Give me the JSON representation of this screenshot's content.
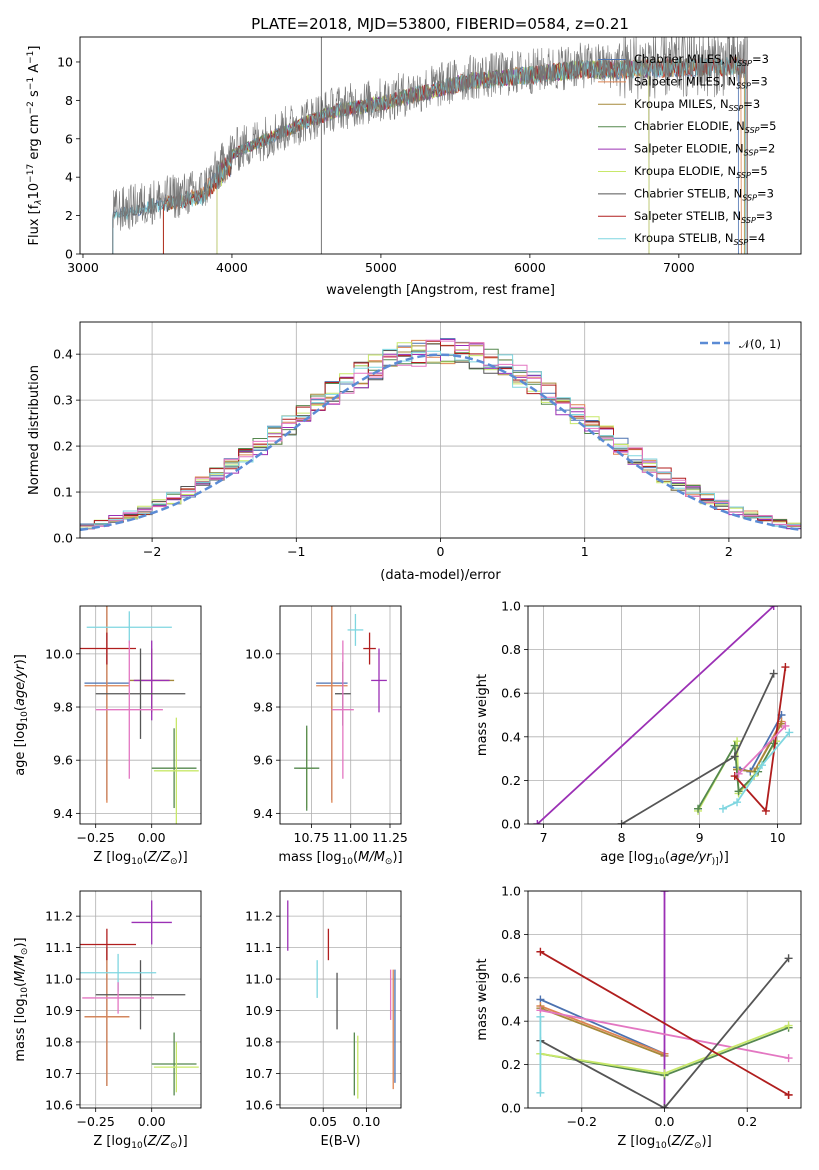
{
  "title": "PLATE=2018, MJD=53800, FIBERID=0584, z=0.21",
  "models": [
    {
      "name": "Chabrier MILES",
      "nssp": "3",
      "color": "#4c72b0"
    },
    {
      "name": "Salpeter MILES",
      "nssp": "3",
      "color": "#dd8452"
    },
    {
      "name": "Kroupa MILES",
      "nssp": "3",
      "color": "#a5893a"
    },
    {
      "name": "Chabrier ELODIE",
      "nssp": "5",
      "color": "#55884f"
    },
    {
      "name": "Salpeter ELODIE",
      "nssp": "2",
      "color": "#9b30b5"
    },
    {
      "name": "Kroupa ELODIE",
      "nssp": "5",
      "color": "#c8e86a"
    },
    {
      "name": "Chabrier STELIB",
      "nssp": "3",
      "color": "#555555"
    },
    {
      "name": "Salpeter STELIB",
      "nssp": "3",
      "color": "#b01e1e"
    },
    {
      "name": "Kroupa STELIB",
      "nssp": "4",
      "color": "#7fd6e0"
    }
  ],
  "chart_data": [
    {
      "id": "spectrum",
      "type": "line",
      "xlabel": "wavelength [Angstrom, rest frame]",
      "ylabel_parts": {
        "a": "Flux [f",
        "b": "λ",
        "c": "10",
        "d": "−17",
        "e": " erg cm",
        "f": "−2",
        "g": " s",
        "h": "−1",
        "i": " A",
        "j": "−1",
        "k": "]"
      },
      "xlim": [
        2980,
        7820
      ],
      "ylim": [
        0,
        11.3
      ],
      "xticks": [
        "3000",
        "4000",
        "5000",
        "6000",
        "7000"
      ],
      "xtick_values": [
        3000,
        4000,
        5000,
        6000,
        7000
      ],
      "yticks": [
        "0",
        "2",
        "4",
        "6",
        "8",
        "10"
      ],
      "ytick_values": [
        0,
        2,
        4,
        6,
        8,
        10
      ],
      "observed_range": [
        3200,
        7460
      ],
      "model_ranges": [
        [
          3200,
          7400
        ],
        [
          3540,
          7420
        ],
        [
          3540,
          7440
        ],
        [
          3900,
          6800
        ],
        [
          3900,
          6800
        ],
        [
          3900,
          6800
        ],
        [
          3200,
          7450
        ],
        [
          3540,
          7460
        ],
        [
          3200,
          7450
        ]
      ],
      "marker_line_x": 4600,
      "continuum": [
        [
          3200,
          2.2
        ],
        [
          3500,
          2.8
        ],
        [
          3800,
          3.3
        ],
        [
          4000,
          5.3
        ],
        [
          4200,
          6.0
        ],
        [
          4500,
          7.0
        ],
        [
          4700,
          7.6
        ],
        [
          5000,
          8.0
        ],
        [
          5300,
          8.6
        ],
        [
          5600,
          9.2
        ],
        [
          6000,
          9.5
        ],
        [
          6300,
          9.8
        ],
        [
          6600,
          9.8
        ],
        [
          7000,
          9.9
        ],
        [
          7400,
          10.0
        ]
      ]
    },
    {
      "id": "residual-histogram",
      "type": "line",
      "xlabel": "(data-model)/error",
      "ylabel": "Normed distribution",
      "xlim": [
        -2.5,
        2.5
      ],
      "ylim": [
        0,
        0.47
      ],
      "xticks": [
        "−2",
        "−1",
        "0",
        "1",
        "2"
      ],
      "xtick_values": [
        -2,
        -1,
        0,
        1,
        2
      ],
      "yticks": [
        "0.0",
        "0.1",
        "0.2",
        "0.3",
        "0.4"
      ],
      "ytick_values": [
        0,
        0.1,
        0.2,
        0.3,
        0.4
      ],
      "bin_width": 0.1,
      "reference_curve": {
        "label": "𝒩(0, 1)",
        "mean": 0,
        "sigma": 1,
        "color": "#5b8bd5"
      }
    },
    {
      "id": "age-vs-Z",
      "type": "scatter",
      "xlabel_parts": {
        "a": "Z [log",
        "b": "10",
        "c": "(",
        "d": "Z/Z",
        "e": "⊙",
        "f": ")]"
      },
      "ylabel_parts": {
        "a": "age  [log",
        "b": "10",
        "c": "(",
        "d": "age/yr",
        "e": ")]"
      },
      "xlim": [
        -0.32,
        0.22
      ],
      "ylim": [
        9.36,
        10.18
      ],
      "xticks": [
        "−0.25",
        "0.00"
      ],
      "xtick_values": [
        -0.25,
        0.0
      ],
      "yticks": [
        "9.4",
        "9.6",
        "9.8",
        "10.0"
      ],
      "ytick_values": [
        9.4,
        9.6,
        9.8,
        10.0
      ],
      "points": [
        {
          "x": -0.2,
          "y": 9.89,
          "xerr": 0.1,
          "yerr": 0.44,
          "c": 0
        },
        {
          "x": -0.2,
          "y": 9.88,
          "xerr": 0.1,
          "yerr": 0.44,
          "c": 1
        },
        {
          "x": 0.0,
          "y": 9.9,
          "xerr": 0.1,
          "yerr": 0.12,
          "c": 2
        },
        {
          "x": 0.1,
          "y": 9.57,
          "xerr": 0.1,
          "yerr": 0.15,
          "c": 3
        },
        {
          "x": 0.0,
          "y": 9.9,
          "xerr": 0.08,
          "yerr": 0.15,
          "c": 4
        },
        {
          "x": 0.11,
          "y": 9.56,
          "xerr": 0.1,
          "yerr": 0.2,
          "c": 5
        },
        {
          "x": -0.05,
          "y": 9.85,
          "xerr": 0.2,
          "yerr": 0.17,
          "c": 6
        },
        {
          "x": -0.2,
          "y": 10.02,
          "xerr": 0.13,
          "yerr": 0.06,
          "c": 7
        },
        {
          "x": -0.1,
          "y": 10.1,
          "xerr": 0.19,
          "yerr": 0.06,
          "c": 8
        },
        {
          "x": -0.1,
          "y": 9.79,
          "xerr": 0.15,
          "yerr": 0.26,
          "c": 9
        }
      ]
    },
    {
      "id": "age-vs-mass",
      "type": "scatter",
      "xlabel_parts": {
        "a": "mass [log",
        "b": "10",
        "c": "(",
        "d": "M/M",
        "e": "⊙",
        "f": ")]"
      },
      "xlim": [
        10.55,
        11.32
      ],
      "ylim": [
        9.36,
        10.18
      ],
      "xticks": [
        "10.75",
        "11.00",
        "11.25"
      ],
      "xtick_values": [
        10.75,
        11.0,
        11.25
      ],
      "yticks": [
        "9.4",
        "9.6",
        "9.8",
        "10.0"
      ],
      "ytick_values": [
        9.4,
        9.6,
        9.8,
        10.0
      ],
      "points": [
        {
          "x": 10.88,
          "y": 9.89,
          "xerr": 0.1,
          "yerr": 0.44,
          "c": 0
        },
        {
          "x": 10.88,
          "y": 9.88,
          "xerr": 0.1,
          "yerr": 0.44,
          "c": 1
        },
        {
          "x": 10.72,
          "y": 9.57,
          "xerr": 0.05,
          "yerr": 0.15,
          "c": 5
        },
        {
          "x": 10.72,
          "y": 9.57,
          "xerr": 0.08,
          "yerr": 0.16,
          "c": 3
        },
        {
          "x": 11.18,
          "y": 9.9,
          "xerr": 0.05,
          "yerr": 0.12,
          "c": 4
        },
        {
          "x": 10.95,
          "y": 9.85,
          "xerr": 0.05,
          "yerr": 0.12,
          "c": 6
        },
        {
          "x": 11.12,
          "y": 10.02,
          "xerr": 0.04,
          "yerr": 0.06,
          "c": 7
        },
        {
          "x": 11.03,
          "y": 10.09,
          "xerr": 0.05,
          "yerr": 0.06,
          "c": 8
        },
        {
          "x": 10.95,
          "y": 9.79,
          "xerr": 0.07,
          "yerr": 0.26,
          "c": 9
        }
      ]
    },
    {
      "id": "massweight-vs-age",
      "type": "line",
      "xlabel_parts": {
        "a": "age  [log",
        "b": "10",
        "c": "(",
        "d": "age/yr",
        "e": ")]"
      },
      "ylabel": "mass weight",
      "xlim": [
        6.8,
        10.3
      ],
      "ylim": [
        0,
        1
      ],
      "xticks": [
        "7",
        "8",
        "9",
        "10"
      ],
      "xtick_values": [
        7,
        8,
        9,
        10
      ],
      "yticks": [
        "0.0",
        "0.2",
        "0.4",
        "0.6",
        "0.8",
        "1.0"
      ],
      "ytick_values": [
        0,
        0.2,
        0.4,
        0.6,
        0.8,
        1.0
      ],
      "series": [
        {
          "c": 0,
          "x": [
            9.48,
            9.65,
            10.05
          ],
          "y": [
            0.26,
            0.24,
            0.5
          ]
        },
        {
          "c": 1,
          "x": [
            9.48,
            9.7,
            10.05
          ],
          "y": [
            0.25,
            0.24,
            0.47
          ]
        },
        {
          "c": 2,
          "x": [
            9.48,
            9.7,
            10.05
          ],
          "y": [
            0.25,
            0.24,
            0.46
          ]
        },
        {
          "c": 4,
          "x": [
            6.92,
            9.95
          ],
          "y": [
            0.0,
            1.0
          ]
        },
        {
          "c": 5,
          "x": [
            8.98,
            9.48,
            9.5,
            9.7,
            9.98
          ],
          "y": [
            0.06,
            0.38,
            0.14,
            0.22,
            0.38
          ]
        },
        {
          "c": 3,
          "x": [
            8.98,
            9.45,
            9.5,
            9.75,
            9.95
          ],
          "y": [
            0.07,
            0.36,
            0.15,
            0.24,
            0.37
          ]
        },
        {
          "c": 6,
          "x": [
            8.0,
            9.45,
            9.95
          ],
          "y": [
            0.0,
            0.31,
            0.69
          ]
        },
        {
          "c": 7,
          "x": [
            9.45,
            9.85,
            10.1
          ],
          "y": [
            0.22,
            0.06,
            0.72
          ]
        },
        {
          "c": 8,
          "x": [
            9.3,
            9.48,
            9.8,
            10.15
          ],
          "y": [
            0.07,
            0.1,
            0.27,
            0.42
          ]
        },
        {
          "c": 9,
          "x": [
            9.5,
            10.1
          ],
          "y": [
            0.23,
            0.45
          ]
        }
      ]
    },
    {
      "id": "mass-vs-Z",
      "type": "scatter",
      "xlabel_parts": {
        "a": "Z [log",
        "b": "10",
        "c": "(",
        "d": "Z/Z",
        "e": "⊙",
        "f": ")]"
      },
      "ylabel_parts": {
        "a": "mass [log",
        "b": "10",
        "c": "(",
        "d": "M/M",
        "e": "⊙",
        "f": ")]"
      },
      "xlim": [
        -0.32,
        0.22
      ],
      "ylim": [
        10.59,
        11.28
      ],
      "xticks": [
        "−0.25",
        "0.00"
      ],
      "xtick_values": [
        -0.25,
        0.0
      ],
      "yticks": [
        "10.6",
        "10.7",
        "10.8",
        "10.9",
        "11.0",
        "11.1",
        "11.2"
      ],
      "ytick_values": [
        10.6,
        10.7,
        10.8,
        10.9,
        11.0,
        11.1,
        11.2
      ],
      "points": [
        {
          "x": -0.2,
          "y": 10.88,
          "xerr": 0.1,
          "yerr": 0.22,
          "c": 0
        },
        {
          "x": -0.2,
          "y": 10.88,
          "xerr": 0.1,
          "yerr": 0.22,
          "c": 1
        },
        {
          "x": 0.1,
          "y": 10.73,
          "xerr": 0.1,
          "yerr": 0.1,
          "c": 3
        },
        {
          "x": 0.0,
          "y": 11.18,
          "xerr": 0.09,
          "yerr": 0.07,
          "c": 4
        },
        {
          "x": 0.11,
          "y": 10.72,
          "xerr": 0.1,
          "yerr": 0.08,
          "c": 5
        },
        {
          "x": -0.05,
          "y": 10.95,
          "xerr": 0.2,
          "yerr": 0.11,
          "c": 6
        },
        {
          "x": -0.2,
          "y": 11.11,
          "xerr": 0.13,
          "yerr": 0.05,
          "c": 7
        },
        {
          "x": -0.15,
          "y": 11.02,
          "xerr": 0.17,
          "yerr": 0.06,
          "c": 8
        },
        {
          "x": -0.15,
          "y": 10.94,
          "xerr": 0.16,
          "yerr": 0.05,
          "c": 9
        }
      ]
    },
    {
      "id": "mass-vs-ebv",
      "type": "scatter",
      "xlabel": "E(B-V)",
      "xlim": [
        0.0,
        0.14
      ],
      "ylim": [
        10.59,
        11.28
      ],
      "xticks": [
        "0.05",
        "0.10"
      ],
      "xtick_values": [
        0.05,
        0.1
      ],
      "yticks": [
        "10.6",
        "10.7",
        "10.8",
        "10.9",
        "11.0",
        "11.1",
        "11.2"
      ],
      "ytick_values": [
        10.6,
        10.7,
        10.8,
        10.9,
        11.0,
        11.1,
        11.2
      ],
      "points": [
        {
          "x": 0.133,
          "y": 10.85,
          "yerr": 0.18,
          "c": 0
        },
        {
          "x": 0.131,
          "y": 10.84,
          "yerr": 0.19,
          "c": 1
        },
        {
          "x": 0.086,
          "y": 10.73,
          "yerr": 0.1,
          "c": 3
        },
        {
          "x": 0.009,
          "y": 11.17,
          "yerr": 0.08,
          "c": 4
        },
        {
          "x": 0.09,
          "y": 10.72,
          "yerr": 0.1,
          "c": 5
        },
        {
          "x": 0.066,
          "y": 10.93,
          "yerr": 0.09,
          "c": 6
        },
        {
          "x": 0.056,
          "y": 11.11,
          "yerr": 0.05,
          "c": 7
        },
        {
          "x": 0.043,
          "y": 11.0,
          "yerr": 0.06,
          "c": 8
        },
        {
          "x": 0.128,
          "y": 10.95,
          "yerr": 0.08,
          "c": 9
        }
      ]
    },
    {
      "id": "massweight-vs-Z",
      "type": "line",
      "xlabel_parts": {
        "a": "Z [log",
        "b": "10",
        "c": "(",
        "d": "Z/Z",
        "e": "⊙",
        "f": ")]"
      },
      "ylabel": "mass weight",
      "xlim": [
        -0.33,
        0.33
      ],
      "ylim": [
        0,
        1
      ],
      "xticks": [
        "−0.2",
        "0.0",
        "0.2"
      ],
      "xtick_values": [
        -0.2,
        0.0,
        0.2
      ],
      "yticks": [
        "0.0",
        "0.2",
        "0.4",
        "0.6",
        "0.8",
        "1.0"
      ],
      "ytick_values": [
        0,
        0.2,
        0.4,
        0.6,
        0.8,
        1.0
      ],
      "series": [
        {
          "c": 0,
          "x": [
            -0.3,
            0.0
          ],
          "y": [
            0.5,
            0.25
          ]
        },
        {
          "c": 1,
          "x": [
            -0.3,
            0.0
          ],
          "y": [
            0.47,
            0.25
          ]
        },
        {
          "c": 2,
          "x": [
            -0.3,
            0.0
          ],
          "y": [
            0.46,
            0.24
          ]
        },
        {
          "c": 4,
          "x": [
            0.0,
            0.0
          ],
          "y": [
            0.0,
            1.0
          ]
        },
        {
          "c": 9,
          "x": [
            -0.3,
            0.3
          ],
          "y": [
            0.45,
            0.23
          ]
        },
        {
          "c": 3,
          "x": [
            -0.3,
            0.0,
            0.3
          ],
          "y": [
            0.25,
            0.15,
            0.37
          ]
        },
        {
          "c": 5,
          "x": [
            -0.3,
            0.0,
            0.3
          ],
          "y": [
            0.25,
            0.16,
            0.38
          ]
        },
        {
          "c": 6,
          "x": [
            -0.3,
            0.0,
            0.3
          ],
          "y": [
            0.31,
            0.0,
            0.69
          ]
        },
        {
          "c": 7,
          "x": [
            -0.3,
            0.3,
            0.3
          ],
          "y": [
            0.72,
            0.06,
            0.06
          ]
        },
        {
          "c": 8,
          "x": [
            -0.3,
            -0.3
          ],
          "y": [
            0.07,
            0.42
          ]
        }
      ]
    }
  ],
  "extra_colors": {
    "pink": "#e377c2"
  }
}
